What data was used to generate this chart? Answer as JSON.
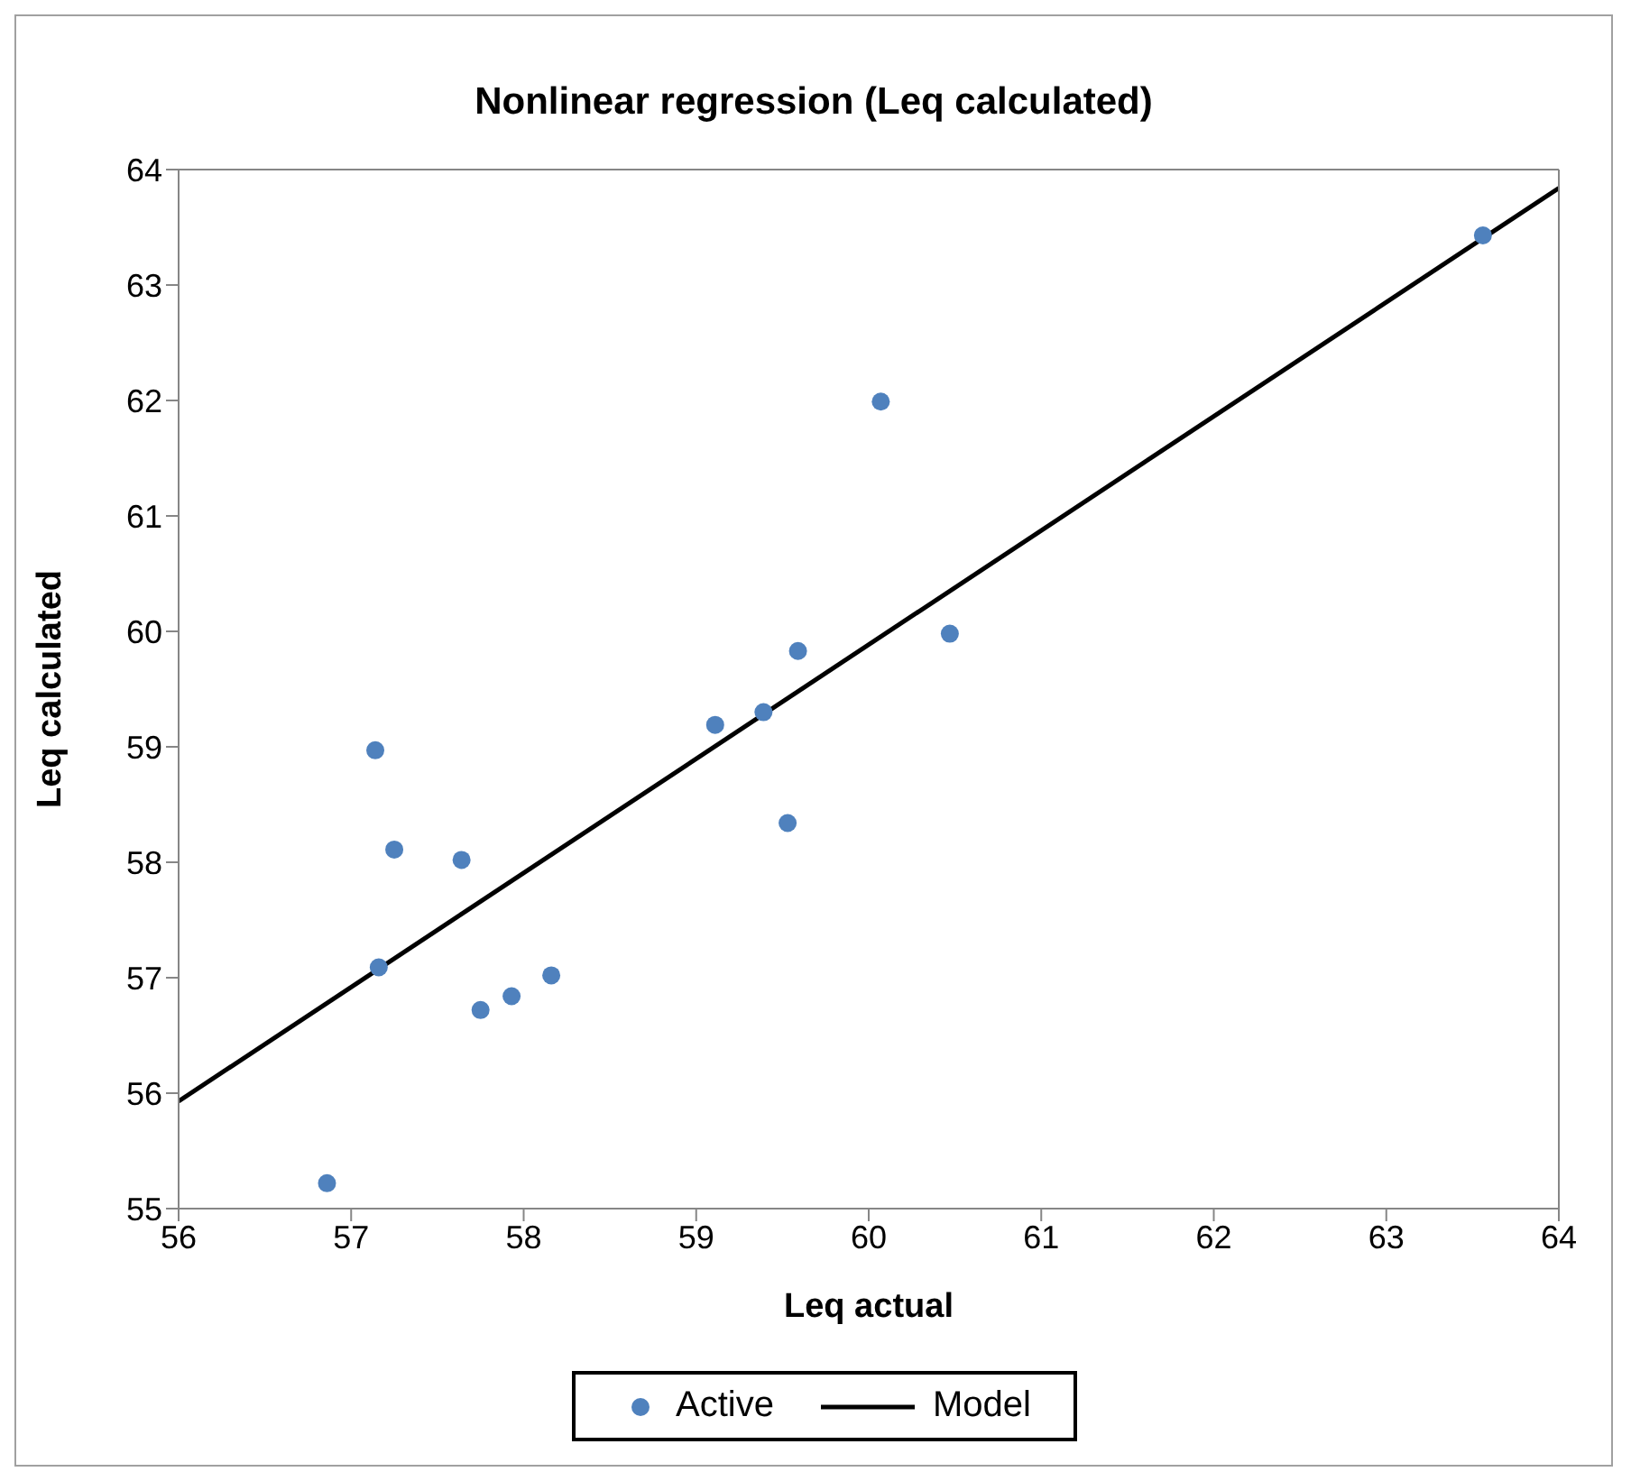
{
  "chart_data": {
    "type": "scatter",
    "title": "Nonlinear regression (Leq calculated)",
    "xlabel": "Leq actual",
    "ylabel": "Leq calculated",
    "xlim": [
      56,
      64
    ],
    "xticks": [
      56,
      57,
      58,
      59,
      60,
      61,
      62,
      63,
      64
    ],
    "ylim": [
      55,
      64
    ],
    "yticks": [
      55,
      56,
      57,
      58,
      59,
      60,
      61,
      62,
      63,
      64
    ],
    "grid": false,
    "legend": "bottom",
    "series": [
      {
        "name": "Active",
        "marker": "circle",
        "color": "#4f81bd",
        "x": [
          56.86,
          57.14,
          57.25,
          57.64,
          57.16,
          57.75,
          57.93,
          58.16,
          59.11,
          59.39,
          59.53,
          59.59,
          60.07,
          60.47,
          63.56
        ],
        "values": [
          55.22,
          58.97,
          58.11,
          58.02,
          57.09,
          56.72,
          56.84,
          57.02,
          59.19,
          59.3,
          58.34,
          59.83,
          61.99,
          59.98,
          63.43
        ]
      },
      {
        "name": "Model",
        "type": "line",
        "marker": "none",
        "color": "#000000",
        "x": [
          56,
          64
        ],
        "values": [
          55.93,
          63.84
        ],
        "line_style": "solid"
      }
    ]
  }
}
